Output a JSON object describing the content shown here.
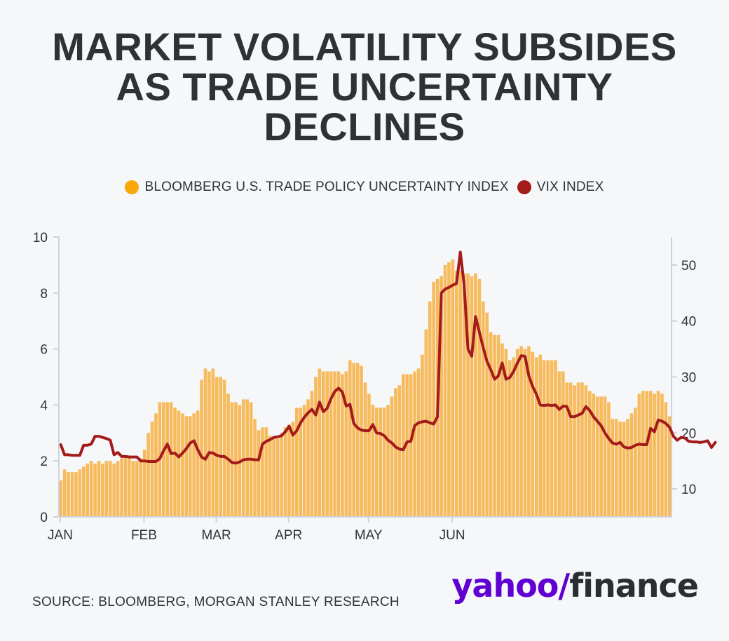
{
  "title": [
    "MARKET VOLATILITY SUBSIDES",
    "AS TRADE UNCERTAINTY",
    "DECLINES"
  ],
  "legend": [
    {
      "label": "BLOOMBERG U.S. TRADE POLICY UNCERTAINTY INDEX",
      "color": "#f9a70b"
    },
    {
      "label": "VIX INDEX",
      "color": "#a31b1b"
    }
  ],
  "source": "SOURCE: BLOOMBERG, MORGAN STANLEY RESEARCH",
  "brand": {
    "yahoo": "yahoo/",
    "finance": "finance"
  },
  "colors": {
    "bar": "#f7bb5e",
    "line": "#a31b1b",
    "axis": "#cfd3d8",
    "text": "#2f3238"
  },
  "chart_data": {
    "type": "bar+line",
    "x_ticks": [
      "JAN",
      "FEB",
      "MAR",
      "APR",
      "MAY",
      "JUN"
    ],
    "y_left": {
      "range": [
        0,
        10
      ],
      "ticks": [
        "0",
        "2",
        "4",
        "6",
        "8",
        "10"
      ]
    },
    "y_right": {
      "range": [
        5,
        55
      ],
      "ticks": [
        "10",
        "20",
        "30",
        "40",
        "50"
      ]
    },
    "series": [
      {
        "name": "BLOOMBERG U.S. TRADE POLICY UNCERTAINTY INDEX",
        "type": "bar",
        "axis": "left",
        "values": [
          1.3,
          1.7,
          1.6,
          1.6,
          1.6,
          1.7,
          1.8,
          1.9,
          2.0,
          1.9,
          2.0,
          1.9,
          2.0,
          2.0,
          1.9,
          2.0,
          2.1,
          2.1,
          2.1,
          2.0,
          2.0,
          2.1,
          2.4,
          3.0,
          3.4,
          3.7,
          4.1,
          4.1,
          4.1,
          4.1,
          3.9,
          3.8,
          3.7,
          3.6,
          3.6,
          3.7,
          3.8,
          4.9,
          5.3,
          5.2,
          5.3,
          5.0,
          5.0,
          4.9,
          4.4,
          4.1,
          4.1,
          4.0,
          4.2,
          4.2,
          4.1,
          3.5,
          3.1,
          3.2,
          3.2,
          2.9,
          2.8,
          2.8,
          3.0,
          3.2,
          3.3,
          3.4,
          3.9,
          3.9,
          4.0,
          4.2,
          4.5,
          5.0,
          5.3,
          5.2,
          5.2,
          5.2,
          5.2,
          5.2,
          5.1,
          5.2,
          5.6,
          5.5,
          5.5,
          5.4,
          4.8,
          4.4,
          4.0,
          3.9,
          3.9,
          3.9,
          4.0,
          4.3,
          4.6,
          4.7,
          5.1,
          5.1,
          5.1,
          5.2,
          5.3,
          5.8,
          6.7,
          7.7,
          8.4,
          8.5,
          8.6,
          9.0,
          9.1,
          9.2,
          8.8,
          8.8,
          8.7,
          8.7,
          8.6,
          8.7,
          8.5,
          7.7,
          7.3,
          6.6,
          6.5,
          6.5,
          6.2,
          6.0,
          5.6,
          5.7,
          6.0,
          6.1,
          6.0,
          6.1,
          5.9,
          5.7,
          5.8,
          5.6,
          5.6,
          5.6,
          5.6,
          5.2,
          5.2,
          4.8,
          4.8,
          4.7,
          4.8,
          4.8,
          4.7,
          4.5,
          4.4,
          4.3,
          4.3,
          4.3,
          4.1,
          3.5,
          3.5,
          3.4,
          3.4,
          3.5,
          3.7,
          3.9,
          4.4,
          4.5,
          4.5,
          4.5,
          4.4,
          4.5,
          4.4,
          4.1,
          3.6
        ]
      },
      {
        "name": "VIX INDEX",
        "type": "line",
        "axis": "right",
        "values": [
          17.9,
          16.1,
          16.1,
          16.0,
          16.0,
          16.0,
          17.8,
          17.8,
          18.0,
          19.4,
          19.4,
          19.2,
          19.0,
          18.7,
          16.1,
          16.5,
          15.8,
          15.8,
          15.7,
          15.7,
          15.7,
          15.0,
          15.0,
          14.9,
          14.9,
          14.9,
          15.4,
          16.8,
          18.0,
          16.3,
          16.4,
          15.7,
          16.4,
          17.2,
          18.2,
          18.6,
          17.0,
          15.7,
          15.3,
          16.5,
          16.4,
          16.0,
          15.8,
          15.8,
          15.3,
          14.7,
          14.6,
          14.8,
          15.2,
          15.3,
          15.3,
          15.2,
          15.2,
          18.0,
          18.5,
          18.8,
          19.2,
          19.3,
          19.5,
          20.2,
          21.2,
          19.6,
          20.4,
          21.8,
          22.8,
          23.6,
          24.2,
          23.2,
          25.5,
          23.8,
          24.4,
          26.1,
          27.4,
          28.0,
          27.3,
          24.8,
          25.1,
          21.7,
          20.9,
          20.5,
          20.4,
          20.4,
          21.5,
          20.0,
          19.9,
          19.5,
          18.7,
          18.2,
          17.5,
          17.1,
          17.0,
          18.4,
          18.5,
          21.3,
          21.8,
          22.0,
          22.1,
          21.8,
          21.6,
          22.9,
          45.0,
          45.7,
          46.0,
          46.4,
          46.7,
          52.3,
          46.5,
          35.0,
          33.7,
          40.8,
          38.0,
          35.3,
          32.8,
          31.3,
          29.6,
          30.2,
          32.5,
          29.6,
          29.9,
          31.0,
          32.5,
          33.8,
          33.7,
          30.2,
          28.3,
          26.9,
          25.0,
          24.9,
          25.0,
          24.9,
          25.0,
          24.2,
          24.8,
          24.7,
          22.9,
          22.9,
          23.2,
          23.5,
          24.7,
          24.0,
          22.9,
          22.1,
          21.3,
          20.0,
          19.0,
          18.2,
          18.0,
          18.3,
          17.5,
          17.3,
          17.4,
          17.8,
          18.0,
          17.9,
          17.9,
          20.8,
          20.2,
          22.3,
          22.1,
          21.7,
          21.0,
          19.4,
          18.7,
          19.2,
          19.1,
          18.5,
          18.4,
          18.4,
          18.3,
          18.4,
          18.6,
          17.4,
          18.3
        ]
      }
    ]
  }
}
